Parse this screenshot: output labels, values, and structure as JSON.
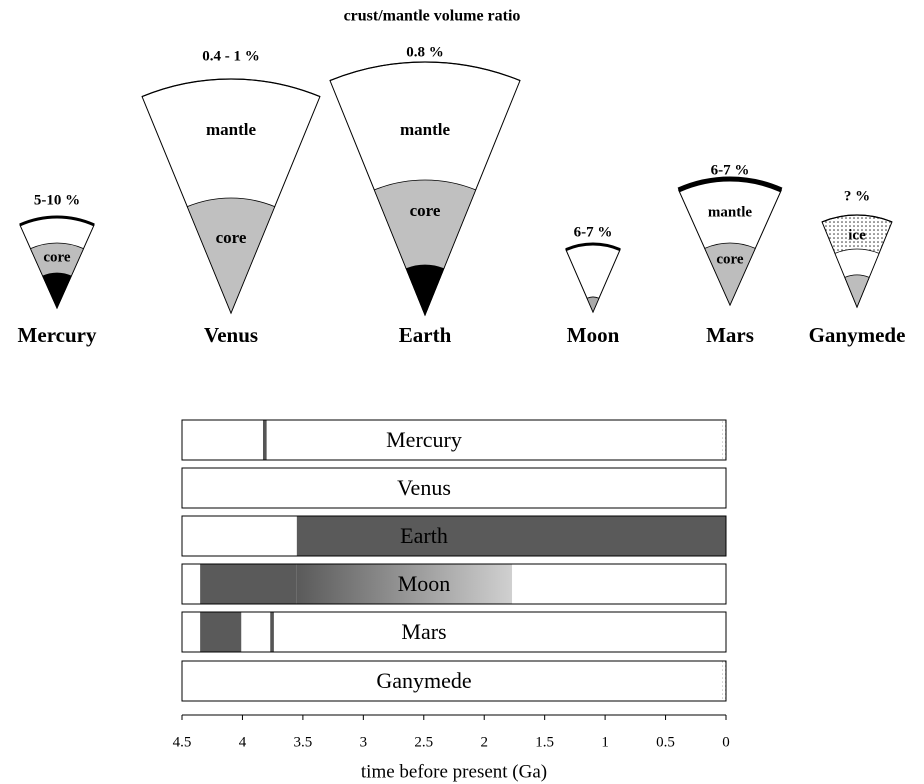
{
  "title": "crust/mantle  volume ratio",
  "planets": [
    {
      "name": "Mercury",
      "ratio": "5-10 %",
      "layers": [
        "core"
      ]
    },
    {
      "name": "Venus",
      "ratio": "0.4 - 1 %",
      "layers": [
        "mantle",
        "core"
      ]
    },
    {
      "name": "Earth",
      "ratio": "0.8 %",
      "layers": [
        "mantle",
        "core"
      ]
    },
    {
      "name": "Moon",
      "ratio": "6-7 %",
      "layers": []
    },
    {
      "name": "Mars",
      "ratio": "6-7 %",
      "layers": [
        "mantle",
        "core"
      ]
    },
    {
      "name": "Ganymede",
      "ratio": "? %",
      "layers": [
        "ice"
      ]
    }
  ],
  "timeline": {
    "xlabel": "time before present (Ga)",
    "xlim": [
      4.5,
      0
    ],
    "xticks": [
      4.5,
      4,
      3.5,
      3,
      2.5,
      2,
      1.5,
      1,
      0.5,
      0
    ],
    "rows": [
      {
        "name": "Mercury",
        "segments": [
          {
            "start": 3.83,
            "end": 3.8,
            "color": "#555555"
          },
          {
            "start": 0.03,
            "end": 0,
            "color": "dots"
          }
        ]
      },
      {
        "name": "Venus",
        "segments": []
      },
      {
        "name": "Earth",
        "segments": [
          {
            "start": 3.55,
            "end": 0,
            "color": "#5a5a5a"
          }
        ]
      },
      {
        "name": "Moon",
        "segments": [
          {
            "start": 4.35,
            "end": 3.55,
            "color": "#5a5a5a"
          },
          {
            "start": 3.55,
            "end": 1.77,
            "color": "#5a5a5a",
            "fade_to": "#d0d0d0"
          }
        ]
      },
      {
        "name": "Mars",
        "segments": [
          {
            "start": 4.35,
            "end": 4.01,
            "color": "#5a5a5a"
          },
          {
            "start": 3.77,
            "end": 3.74,
            "color": "#555555"
          }
        ]
      },
      {
        "name": "Ganymede",
        "segments": [
          {
            "start": 0.03,
            "end": 0,
            "color": "dots"
          }
        ]
      }
    ]
  }
}
